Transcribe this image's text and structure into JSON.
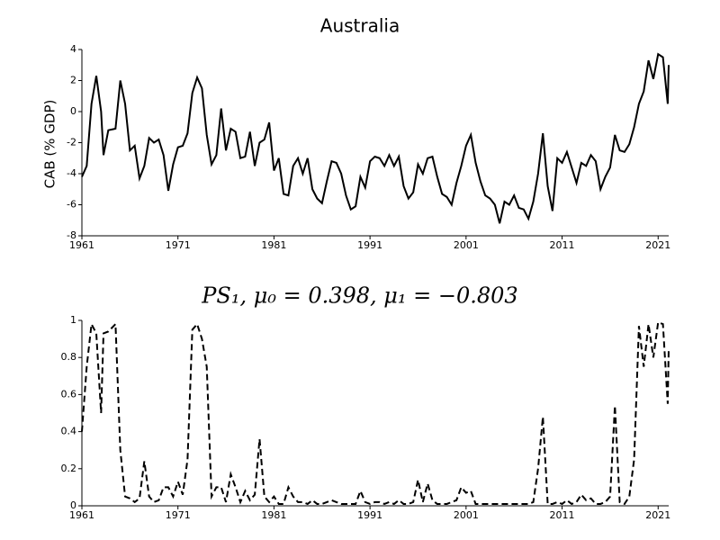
{
  "chart_data": [
    {
      "type": "line",
      "title": "Australia",
      "y_label": "CAB (% GDP)",
      "color": "#000000",
      "linestyle": "solid",
      "x": [
        1961,
        1961.5,
        1962,
        1962.5,
        1963,
        1963.25,
        1963.75,
        1964.5,
        1965,
        1965.5,
        1966,
        1966.5,
        1967,
        1967.5,
        1968,
        1968.5,
        1969,
        1969.5,
        1970,
        1970.5,
        1971,
        1971.5,
        1972,
        1972.5,
        1973,
        1973.5,
        1974,
        1974.5,
        1975,
        1975.5,
        1976,
        1976.5,
        1977,
        1977.5,
        1978,
        1978.5,
        1979,
        1979.5,
        1980,
        1980.5,
        1981,
        1981.5,
        1982,
        1982.5,
        1983,
        1983.5,
        1984,
        1984.5,
        1985,
        1985.5,
        1986,
        1986.5,
        1987,
        1987.5,
        1988,
        1988.5,
        1989,
        1989.5,
        1990,
        1990.5,
        1991,
        1991.5,
        1992,
        1992.5,
        1993,
        1993.5,
        1994,
        1994.5,
        1995,
        1995.5,
        1996,
        1996.5,
        1997,
        1997.5,
        1998,
        1998.5,
        1999,
        1999.5,
        2000,
        2000.5,
        2001,
        2001.5,
        2002,
        2002.5,
        2003,
        2003.5,
        2004,
        2004.5,
        2005,
        2005.5,
        2006,
        2006.5,
        2007,
        2007.5,
        2008,
        2008.5,
        2009,
        2009.5,
        2010,
        2010.5,
        2011,
        2011.5,
        2012,
        2012.5,
        2013,
        2013.5,
        2014,
        2014.5,
        2015,
        2015.5,
        2016,
        2016.5,
        2017,
        2017.5,
        2018,
        2018.5,
        2019,
        2019.5,
        2020,
        2020.5,
        2021,
        2021.5,
        2022,
        2022.1
      ],
      "values": [
        -4.2,
        -3.5,
        0.5,
        2.3,
        0,
        -2.8,
        -1.2,
        -1.1,
        2.0,
        0.5,
        -2.5,
        -2.2,
        -4.3,
        -3.5,
        -1.7,
        -2.0,
        -1.8,
        -2.8,
        -5.1,
        -3.4,
        -2.3,
        -2.2,
        -1.4,
        1.2,
        2.2,
        1.5,
        -1.5,
        -3.4,
        -2.8,
        0.2,
        -2.5,
        -1.1,
        -1.3,
        -3.0,
        -2.9,
        -1.3,
        -3.5,
        -2.0,
        -1.8,
        -0.7,
        -3.8,
        -3.0,
        -5.3,
        -5.4,
        -3.5,
        -3.0,
        -4.0,
        -3.0,
        -5.0,
        -5.6,
        -5.9,
        -4.5,
        -3.2,
        -3.3,
        -4.0,
        -5.4,
        -6.3,
        -6.1,
        -4.2,
        -4.9,
        -3.2,
        -2.9,
        -3.0,
        -3.5,
        -2.8,
        -3.5,
        -2.9,
        -4.8,
        -5.6,
        -5.2,
        -3.4,
        -4.0,
        -3.0,
        -2.9,
        -4.2,
        -5.3,
        -5.5,
        -6.0,
        -4.6,
        -3.5,
        -2.2,
        -1.5,
        -3.3,
        -4.5,
        -5.4,
        -5.6,
        -6.0,
        -7.2,
        -5.8,
        -6.0,
        -5.4,
        -6.2,
        -6.3,
        -6.9,
        -5.8,
        -4.0,
        -1.4,
        -4.8,
        -6.4,
        -3.0,
        -3.3,
        -2.6,
        -3.6,
        -4.6,
        -3.3,
        -3.5,
        -2.8,
        -3.2,
        -5.0,
        -4.2,
        -3.6,
        -1.5,
        -2.5,
        -2.6,
        -2.1,
        -1.0,
        0.5,
        1.3,
        3.3,
        2.1,
        3.7,
        3.5,
        0.5,
        3.0
      ],
      "xlim": [
        1961,
        2022.1
      ],
      "xticks": [
        1961,
        1971,
        1981,
        1991,
        2001,
        2011,
        2021
      ],
      "ylim": [
        -8,
        4
      ],
      "yticks": [
        -8,
        -6,
        -4,
        -2,
        0,
        2,
        4
      ]
    },
    {
      "type": "line",
      "title": "PS₁, μ₀ = 0.398, μ₁ = −0.803",
      "color": "#000000",
      "linestyle": "dashed",
      "x": [
        1961,
        1961.5,
        1962,
        1962.5,
        1963,
        1963.25,
        1963.75,
        1964.5,
        1965,
        1965.5,
        1966,
        1966.5,
        1967,
        1967.5,
        1968,
        1968.5,
        1969,
        1969.5,
        1970,
        1970.5,
        1971,
        1971.5,
        1972,
        1972.5,
        1973,
        1973.5,
        1974,
        1974.5,
        1975,
        1975.5,
        1976,
        1976.5,
        1977,
        1977.5,
        1978,
        1978.5,
        1979,
        1979.5,
        1980,
        1980.5,
        1981,
        1981.5,
        1982,
        1982.5,
        1983,
        1983.5,
        1984,
        1984.5,
        1985,
        1985.5,
        1986,
        1986.5,
        1987,
        1987.5,
        1988,
        1988.5,
        1989,
        1989.5,
        1990,
        1990.5,
        1991,
        1991.5,
        1992,
        1992.5,
        1993,
        1993.5,
        1994,
        1994.5,
        1995,
        1995.5,
        1996,
        1996.5,
        1997,
        1997.5,
        1998,
        1998.5,
        1999,
        1999.5,
        2000,
        2000.5,
        2001,
        2001.5,
        2002,
        2002.5,
        2003,
        2003.5,
        2004,
        2004.5,
        2005,
        2005.5,
        2006,
        2006.5,
        2007,
        2007.5,
        2008,
        2008.5,
        2009,
        2009.5,
        2010,
        2010.5,
        2011,
        2011.5,
        2012,
        2012.5,
        2013,
        2013.5,
        2014,
        2014.5,
        2015,
        2015.5,
        2016,
        2016.5,
        2017,
        2017.5,
        2018,
        2018.5,
        2019,
        2019.5,
        2020,
        2020.5,
        2021,
        2021.5,
        2022,
        2022.1
      ],
      "values": [
        0.4,
        0.75,
        0.98,
        0.93,
        0.5,
        0.93,
        0.94,
        0.98,
        0.3,
        0.05,
        0.04,
        0.02,
        0.04,
        0.24,
        0.05,
        0.02,
        0.03,
        0.1,
        0.1,
        0.05,
        0.13,
        0.06,
        0.25,
        0.95,
        0.98,
        0.9,
        0.75,
        0.05,
        0.1,
        0.1,
        0.02,
        0.17,
        0.1,
        0.02,
        0.08,
        0.03,
        0.06,
        0.36,
        0.05,
        0.02,
        0.05,
        0.01,
        0.01,
        0.1,
        0.05,
        0.02,
        0.02,
        0.01,
        0.03,
        0.01,
        0.01,
        0.02,
        0.03,
        0.02,
        0.01,
        0.01,
        0.01,
        0.01,
        0.08,
        0.02,
        0.01,
        0.02,
        0.02,
        0.01,
        0.02,
        0.01,
        0.03,
        0.01,
        0.01,
        0.02,
        0.14,
        0.02,
        0.12,
        0.03,
        0.01,
        0.01,
        0.01,
        0.02,
        0.03,
        0.1,
        0.07,
        0.08,
        0.01,
        0.01,
        0.01,
        0.01,
        0.01,
        0.01,
        0.01,
        0.01,
        0.01,
        0.01,
        0.01,
        0.01,
        0.02,
        0.2,
        0.48,
        0.01,
        0.01,
        0.02,
        0.01,
        0.03,
        0.01,
        0.02,
        0.06,
        0.03,
        0.04,
        0.01,
        0.01,
        0.02,
        0.05,
        0.54,
        0.02,
        0.01,
        0.05,
        0.25,
        0.97,
        0.75,
        0.98,
        0.8,
        0.99,
        0.98,
        0.55,
        0.85
      ],
      "xlim": [
        1961,
        2022.1
      ],
      "xticks": [
        1961,
        1971,
        1981,
        1991,
        2001,
        2011,
        2021
      ],
      "ylim": [
        0,
        1
      ],
      "yticks": [
        0,
        0.2,
        0.4,
        0.6,
        0.8,
        1
      ]
    }
  ]
}
